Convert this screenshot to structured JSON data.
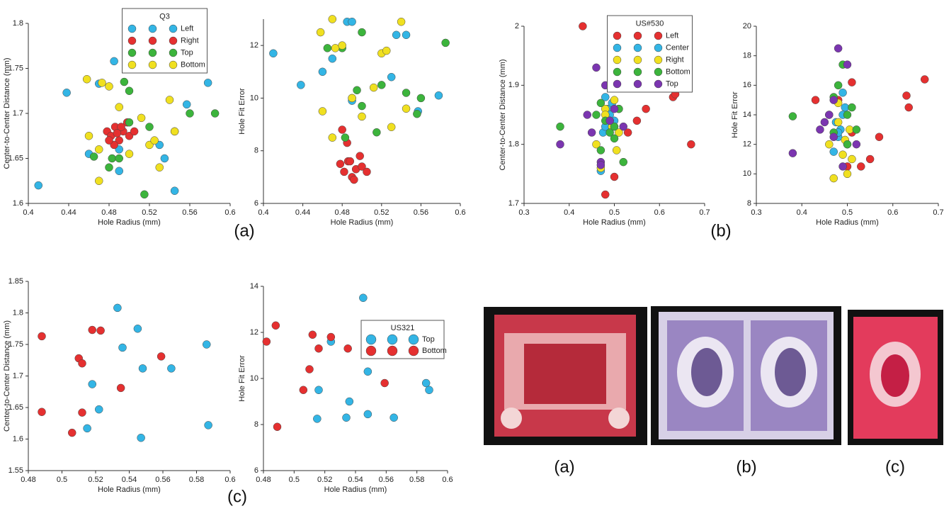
{
  "chart_data": [
    {
      "type": "scatter",
      "xlabel": "Hole Radius (mm)",
      "ylabel": "Center-to-Center Distance (mm)",
      "xlim": [
        0.4,
        0.6
      ],
      "ylim": [
        1.6,
        1.8
      ],
      "xticks": [
        0.4,
        0.44,
        0.48,
        0.52,
        0.56,
        0.6
      ],
      "yticks": [
        1.6,
        1.65,
        1.7,
        1.75,
        1.8
      ],
      "legend_title": "Q3",
      "legend_loc": "upper center",
      "series": [
        {
          "name": "Left",
          "color": "#33b5e5",
          "x": [
            0.41,
            0.438,
            0.47,
            0.485,
            0.49,
            0.545,
            0.557,
            0.578,
            0.53,
            0.49,
            0.535,
            0.46
          ],
          "values": [
            1.62,
            1.723,
            1.733,
            1.758,
            1.636,
            1.614,
            1.71,
            1.734,
            1.665,
            1.66,
            1.65,
            1.655
          ]
        },
        {
          "name": "Right",
          "color": "#e53030",
          "x": [
            0.478,
            0.482,
            0.486,
            0.49,
            0.494,
            0.498,
            0.485,
            0.5,
            0.505,
            0.48,
            0.492,
            0.488
          ],
          "values": [
            1.68,
            1.675,
            1.685,
            1.67,
            1.68,
            1.69,
            1.665,
            1.675,
            1.68,
            1.67,
            1.685,
            1.678
          ]
        },
        {
          "name": "Top",
          "color": "#3cb43c",
          "x": [
            0.48,
            0.483,
            0.495,
            0.5,
            0.515,
            0.545,
            0.556,
            0.56,
            0.585,
            0.52,
            0.49,
            0.465,
            0.5
          ],
          "values": [
            1.64,
            1.65,
            1.735,
            1.725,
            1.61,
            1.68,
            1.75,
            1.7,
            1.7,
            1.685,
            1.65,
            1.652,
            1.69
          ]
        },
        {
          "name": "Bottom",
          "color": "#f0e020",
          "x": [
            0.458,
            0.46,
            0.47,
            0.473,
            0.49,
            0.5,
            0.52,
            0.525,
            0.53,
            0.54,
            0.545,
            0.512,
            0.47,
            0.48
          ],
          "values": [
            1.738,
            1.675,
            1.625,
            1.734,
            1.707,
            1.655,
            1.665,
            1.67,
            1.64,
            1.715,
            1.68,
            1.695,
            1.66,
            1.73
          ]
        }
      ]
    },
    {
      "type": "scatter",
      "xlabel": "Hole Radius (mm)",
      "ylabel": "Hole Fit Error",
      "xlim": [
        0.4,
        0.6
      ],
      "ylim": [
        6,
        13
      ],
      "xticks": [
        0.4,
        0.44,
        0.48,
        0.52,
        0.56,
        0.6
      ],
      "yticks": [
        6,
        8,
        10,
        12
      ],
      "series": [
        {
          "name": "Left",
          "color": "#33b5e5",
          "x": [
            0.41,
            0.438,
            0.47,
            0.485,
            0.49,
            0.545,
            0.557,
            0.578,
            0.53,
            0.49,
            0.535,
            0.46
          ],
          "values": [
            11.7,
            10.5,
            11.5,
            12.9,
            12.9,
            12.4,
            9.5,
            10.1,
            10.8,
            9.9,
            12.4,
            11.0
          ]
        },
        {
          "name": "Right",
          "color": "#e53030",
          "x": [
            0.478,
            0.482,
            0.486,
            0.49,
            0.494,
            0.498,
            0.485,
            0.5,
            0.505,
            0.48,
            0.492,
            0.488
          ],
          "values": [
            7.5,
            7.2,
            7.6,
            7.0,
            7.3,
            7.8,
            8.3,
            7.4,
            7.2,
            8.8,
            6.9,
            7.6
          ]
        },
        {
          "name": "Top",
          "color": "#3cb43c",
          "x": [
            0.48,
            0.483,
            0.495,
            0.5,
            0.515,
            0.545,
            0.556,
            0.56,
            0.585,
            0.52,
            0.49,
            0.465,
            0.5
          ],
          "values": [
            11.9,
            8.5,
            10.3,
            9.7,
            8.7,
            10.2,
            9.4,
            10.0,
            12.1,
            10.5,
            10.0,
            11.9,
            12.5
          ]
        },
        {
          "name": "Bottom",
          "color": "#f0e020",
          "x": [
            0.458,
            0.46,
            0.47,
            0.473,
            0.49,
            0.5,
            0.52,
            0.525,
            0.53,
            0.54,
            0.545,
            0.512,
            0.47,
            0.48
          ],
          "values": [
            12.5,
            9.5,
            13.0,
            11.9,
            10.0,
            9.3,
            11.7,
            11.8,
            8.9,
            12.9,
            9.6,
            10.4,
            8.5,
            12.0
          ]
        }
      ]
    },
    {
      "type": "scatter",
      "xlabel": "Hole Radius (mm)",
      "ylabel": "Center-to-Center Distance (mm)",
      "xlim": [
        0.3,
        0.7
      ],
      "ylim": [
        1.7,
        2
      ],
      "xticks": [
        0.3,
        0.4,
        0.5,
        0.6,
        0.7
      ],
      "yticks": [
        1.7,
        1.8,
        1.9,
        2
      ],
      "legend_title": "US#530",
      "legend_loc": "upper center",
      "series": [
        {
          "name": "Left",
          "color": "#e53030",
          "x": [
            0.43,
            0.51,
            0.63,
            0.635,
            0.67,
            0.57,
            0.55,
            0.53,
            0.5,
            0.51,
            0.48
          ],
          "values": [
            2.0,
            1.92,
            1.88,
            1.885,
            1.8,
            1.86,
            1.84,
            1.82,
            1.745,
            1.86,
            1.715
          ]
        },
        {
          "name": "Center",
          "color": "#33b5e5",
          "x": [
            0.48,
            0.49,
            0.485,
            0.47,
            0.5,
            0.475,
            0.49,
            0.495,
            0.48
          ],
          "values": [
            1.88,
            1.9,
            1.86,
            1.755,
            1.84,
            1.82,
            1.85,
            1.87,
            1.83
          ]
        },
        {
          "name": "Right",
          "color": "#f0e020",
          "x": [
            0.48,
            0.49,
            0.5,
            0.46,
            0.47,
            0.51,
            0.48,
            0.495,
            0.505
          ],
          "values": [
            1.86,
            1.84,
            1.875,
            1.8,
            1.76,
            1.82,
            1.85,
            1.83,
            1.79
          ]
        },
        {
          "name": "Bottom",
          "color": "#3cb43c",
          "x": [
            0.38,
            0.46,
            0.47,
            0.48,
            0.49,
            0.5,
            0.52,
            0.51,
            0.47,
            0.5
          ],
          "values": [
            1.83,
            1.85,
            1.79,
            1.84,
            1.82,
            1.81,
            1.77,
            1.86,
            1.87,
            1.83
          ]
        },
        {
          "name": "Top",
          "color": "#7b35b0",
          "x": [
            0.38,
            0.45,
            0.46,
            0.47,
            0.48,
            0.49,
            0.5,
            0.52,
            0.47,
            0.44
          ],
          "values": [
            1.8,
            1.82,
            1.93,
            1.77,
            1.9,
            1.84,
            1.86,
            1.83,
            1.765,
            1.85
          ]
        }
      ]
    },
    {
      "type": "scatter",
      "xlabel": "Hole Radius (mm)",
      "ylabel": "Hole Fit Error",
      "xlim": [
        0.3,
        0.7
      ],
      "ylim": [
        8,
        20
      ],
      "xticks": [
        0.3,
        0.4,
        0.5,
        0.6,
        0.7
      ],
      "yticks": [
        8,
        10,
        12,
        14,
        16,
        18,
        20
      ],
      "series": [
        {
          "name": "Left",
          "color": "#e53030",
          "x": [
            0.43,
            0.51,
            0.63,
            0.635,
            0.67,
            0.57,
            0.55,
            0.53,
            0.5,
            0.51,
            0.48
          ],
          "values": [
            15.0,
            12.8,
            15.3,
            14.5,
            16.4,
            12.5,
            11.0,
            10.5,
            10.5,
            16.2,
            15.0
          ]
        },
        {
          "name": "Center",
          "color": "#33b5e5",
          "x": [
            0.48,
            0.49,
            0.485,
            0.47,
            0.5,
            0.475,
            0.49,
            0.495,
            0.48
          ],
          "values": [
            12.5,
            14.0,
            13.0,
            11.5,
            12.0,
            13.5,
            15.5,
            14.5,
            12.8
          ]
        },
        {
          "name": "Right",
          "color": "#f0e020",
          "x": [
            0.48,
            0.49,
            0.5,
            0.46,
            0.47,
            0.51,
            0.48,
            0.495,
            0.505
          ],
          "values": [
            13.5,
            11.3,
            10.0,
            12.0,
            9.7,
            11.0,
            14.8,
            12.3,
            13.0
          ]
        },
        {
          "name": "Bottom",
          "color": "#3cb43c",
          "x": [
            0.38,
            0.46,
            0.47,
            0.48,
            0.49,
            0.5,
            0.52,
            0.51,
            0.47,
            0.5
          ],
          "values": [
            13.9,
            14.0,
            15.2,
            16.0,
            17.4,
            12.0,
            13.0,
            14.5,
            12.8,
            14.0
          ]
        },
        {
          "name": "Top",
          "color": "#7b35b0",
          "x": [
            0.38,
            0.45,
            0.46,
            0.47,
            0.48,
            0.49,
            0.5,
            0.52,
            0.47,
            0.44
          ],
          "values": [
            11.4,
            13.5,
            14.0,
            12.5,
            18.5,
            10.5,
            17.4,
            12.0,
            15.0,
            13.0
          ]
        }
      ]
    },
    {
      "type": "scatter",
      "xlabel": "Hole Radius (mm)",
      "ylabel": "Center-to-Center Distance (mm)",
      "xlim": [
        0.48,
        0.6
      ],
      "ylim": [
        1.55,
        1.85
      ],
      "xticks": [
        0.48,
        0.5,
        0.52,
        0.54,
        0.56,
        0.58,
        0.6
      ],
      "yticks": [
        1.55,
        1.6,
        1.65,
        1.7,
        1.75,
        1.8,
        1.85
      ],
      "series": [
        {
          "name": "Top",
          "color": "#33b5e5",
          "x": [
            0.533,
            0.545,
            0.536,
            0.548,
            0.565,
            0.518,
            0.586,
            0.522,
            0.515,
            0.547,
            0.587
          ],
          "values": [
            1.808,
            1.775,
            1.745,
            1.712,
            1.712,
            1.687,
            1.75,
            1.647,
            1.617,
            1.602,
            1.622
          ]
        },
        {
          "name": "Bottom",
          "color": "#e53030",
          "x": [
            0.488,
            0.518,
            0.523,
            0.51,
            0.512,
            0.559,
            0.535,
            0.488,
            0.512,
            0.506
          ],
          "values": [
            1.763,
            1.773,
            1.772,
            1.728,
            1.72,
            1.731,
            1.681,
            1.643,
            1.642,
            1.61
          ]
        }
      ]
    },
    {
      "type": "scatter",
      "xlabel": "Hole Radius (mm)",
      "ylabel": "Hole Fit Error",
      "xlim": [
        0.48,
        0.6
      ],
      "ylim": [
        6,
        14
      ],
      "xticks": [
        0.48,
        0.5,
        0.52,
        0.54,
        0.56,
        0.58,
        0.6
      ],
      "yticks": [
        6,
        8,
        10,
        12,
        14
      ],
      "legend_title": "US321",
      "legend_loc": "upper right",
      "series": [
        {
          "name": "Top",
          "color": "#33b5e5",
          "x": [
            0.545,
            0.524,
            0.548,
            0.516,
            0.536,
            0.534,
            0.515,
            0.548,
            0.565,
            0.586,
            0.588
          ],
          "values": [
            13.5,
            11.6,
            10.3,
            9.5,
            9.0,
            8.3,
            8.25,
            8.45,
            8.3,
            9.8,
            9.5
          ]
        },
        {
          "name": "Bottom",
          "color": "#e53030",
          "x": [
            0.482,
            0.488,
            0.512,
            0.524,
            0.516,
            0.535,
            0.51,
            0.506,
            0.559,
            0.489
          ],
          "values": [
            11.6,
            12.3,
            11.9,
            11.8,
            11.3,
            11.3,
            10.4,
            9.5,
            9.8,
            7.9
          ]
        }
      ]
    }
  ],
  "panel_labels": [
    "(a)",
    "(b)",
    "(c)"
  ],
  "stamp_labels": [
    "(a)",
    "(b)",
    "(c)"
  ]
}
